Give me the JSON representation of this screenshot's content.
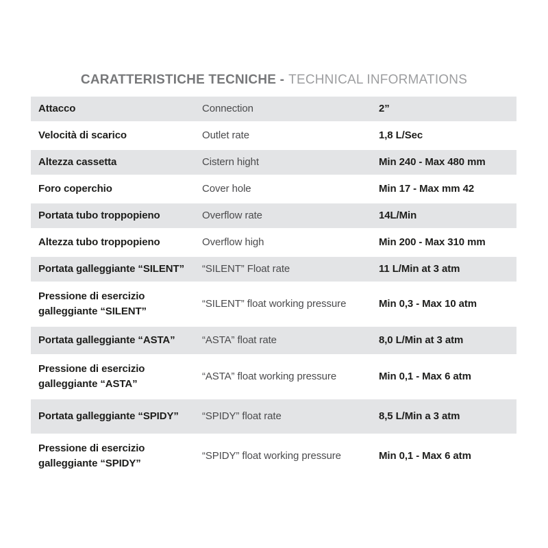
{
  "title": {
    "italian": "CARATTERISTICHE TECNICHE -",
    "english": "TECHNICAL INFORMATIONS"
  },
  "rows": [
    {
      "it": "Attacco",
      "en": "Connection",
      "value": "2”"
    },
    {
      "it": "Velocità di scarico",
      "en": "Outlet rate",
      "value": "1,8 L/Sec"
    },
    {
      "it": "Altezza cassetta",
      "en": "Cistern hight",
      "value": "Min 240 - Max 480 mm"
    },
    {
      "it": "Foro coperchio",
      "en": "Cover hole",
      "value": "Min 17 - Max mm 42"
    },
    {
      "it": "Portata tubo troppopieno",
      "en": "Overflow rate",
      "value": "14L/Min"
    },
    {
      "it": "Altezza tubo troppopieno",
      "en": "Overflow high",
      "value": "Min 200 - Max 310 mm"
    },
    {
      "it": "Portata galleggiante “SILENT”",
      "en": "“SILENT” Float rate",
      "value": "11 L/Min at 3 atm"
    },
    {
      "it": "Pressione di esercizio galleggiante “SILENT”",
      "en": "“SILENT” float working pressure",
      "value": "Min 0,3 - Max 10 atm"
    },
    {
      "it": "Portata galleggiante “ASTA”",
      "en": "“ASTA” float rate",
      "value": "8,0 L/Min at 3 atm"
    },
    {
      "it": "Pressione di esercizio galleggiante “ASTA”",
      "en": "“ASTA” float working pressure",
      "value": "Min 0,1 - Max 6 atm"
    },
    {
      "it": "Portata galleggiante “SPIDY”",
      "en": "“SPIDY” float rate",
      "value": "8,5 L/Min a 3 atm"
    },
    {
      "it": "Pressione di esercizio galleggiante “SPIDY”",
      "en": "“SPIDY” float working pressure",
      "value": "Min 0,1 - Max 6 atm"
    }
  ],
  "colors": {
    "row_alt_background": "#e3e4e6",
    "label_dark": "#1d1d1b",
    "label_mid_gray": "#4b4b4d",
    "title_bold_gray": "#77787a",
    "title_light_gray": "#9d9ea0"
  }
}
